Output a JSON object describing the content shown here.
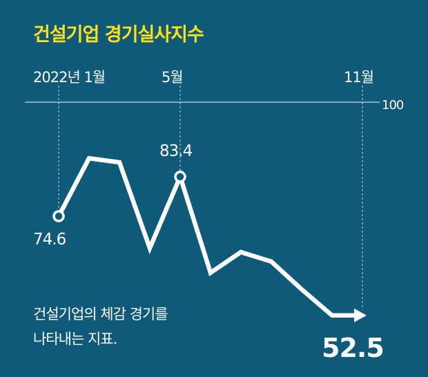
{
  "colors": {
    "background": "#0e5a78",
    "title": "#ffe11a",
    "line": "#ffffff",
    "grid": "#c9d9e0"
  },
  "chart_data": {
    "type": "line",
    "title": "건설기업 경기실사지수",
    "x": [
      "2022-01",
      "2022-02",
      "2022-03",
      "2022-04",
      "2022-05",
      "2022-06",
      "2022-07",
      "2022-08",
      "2022-09",
      "2022-10",
      "2022-11"
    ],
    "x_tick_labels": [
      "2022년 1월",
      "5월",
      "11월"
    ],
    "series": [
      {
        "values": [
          74.6,
          87.5,
          86.6,
          67.5,
          83.4,
          62.0,
          66.6,
          64.5,
          58.3,
          52.5,
          52.5
        ]
      }
    ],
    "reference_line": {
      "value": 100,
      "label": "100"
    },
    "point_labels": {
      "start": "74.6",
      "peak": "83.4",
      "end": "52.5"
    },
    "note_lines": [
      "건설기업의 체감 경기를",
      "나타내는 지표."
    ],
    "ylim": [
      40,
      100
    ],
    "grid": false,
    "legend": "none"
  }
}
